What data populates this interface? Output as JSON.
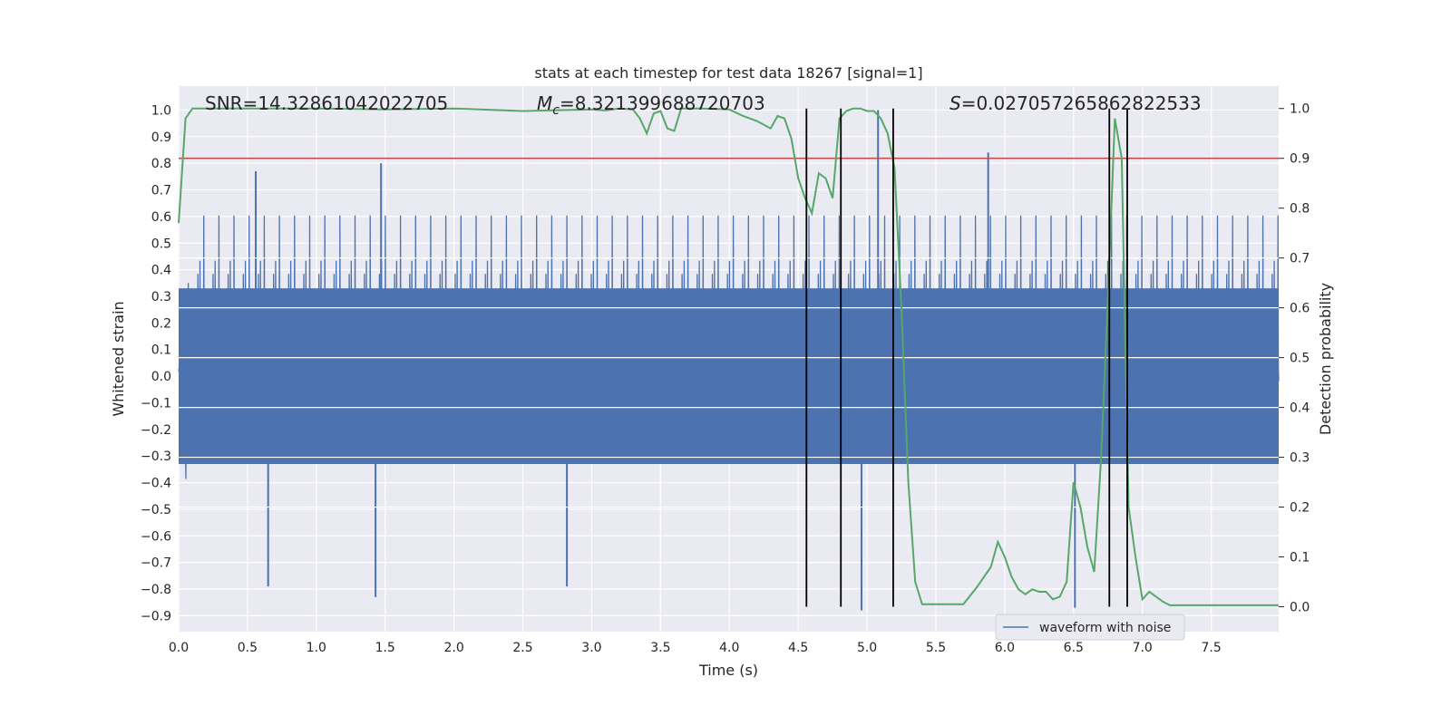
{
  "chart_data": {
    "type": "line",
    "title": "stats at each timestep for test data 18267 [signal=1]",
    "xlabel": "Time (s)",
    "ylabel": "Whitened strain",
    "y2label": "Detection probability",
    "xlim": [
      0.0,
      7.99
    ],
    "ylim": [
      -0.96,
      1.09
    ],
    "y2lim": [
      -0.05,
      1.045
    ],
    "xticks": [
      0.0,
      0.5,
      1.0,
      1.5,
      2.0,
      2.5,
      3.0,
      3.5,
      4.0,
      4.5,
      5.0,
      5.5,
      6.0,
      6.5,
      7.0,
      7.5
    ],
    "xtick_labels": [
      "0.0",
      "0.5",
      "1.0",
      "1.5",
      "2.0",
      "2.5",
      "3.0",
      "3.5",
      "4.0",
      "4.5",
      "5.0",
      "5.5",
      "6.0",
      "6.5",
      "7.0",
      "7.5"
    ],
    "yticks": [
      1.0,
      0.9,
      0.8,
      0.7,
      0.6,
      0.5,
      0.4,
      0.3,
      0.2,
      0.1,
      0.0,
      -0.1,
      -0.2,
      -0.3,
      -0.4,
      -0.5,
      -0.6,
      -0.7,
      -0.8,
      -0.9
    ],
    "ytick_labels": [
      "1.0",
      "0.9",
      "0.8",
      "0.7",
      "0.6",
      "0.5",
      "0.4",
      "0.3",
      "0.2",
      "0.1",
      "0.0",
      "−0.1",
      "−0.2",
      "−0.3",
      "−0.4",
      "−0.5",
      "−0.6",
      "−0.7",
      "−0.8",
      "−0.9"
    ],
    "y2ticks": [
      1.0,
      0.9,
      0.8,
      0.7,
      0.6,
      0.5,
      0.4,
      0.3,
      0.2,
      0.1,
      0.0
    ],
    "y2tick_labels": [
      "1.0",
      "0.9",
      "0.8",
      "0.7",
      "0.6",
      "0.5",
      "0.4",
      "0.3",
      "0.2",
      "0.1",
      "0.0"
    ],
    "grid": true,
    "annotations": {
      "snr": "SNR=14.32861042022705",
      "mc_symbol": "M",
      "mc_sub": "c",
      "mc_value": "=8.321399688720703",
      "s_symbol": "S",
      "s_value": "=0.027057265862822533"
    },
    "series": [
      {
        "name": "waveform with noise",
        "color": "#4c72b0",
        "axis": "left",
        "kind": "noise",
        "core_range": [
          -0.33,
          0.33
        ],
        "typical_peak_range": [
          -0.6,
          0.7
        ],
        "extreme_spikes": [
          {
            "x": 0.65,
            "y": -0.79
          },
          {
            "x": 1.43,
            "y": -0.83
          },
          {
            "x": 1.47,
            "y": 0.8
          },
          {
            "x": 4.96,
            "y": -0.88
          },
          {
            "x": 5.08,
            "y": 1.0
          },
          {
            "x": 5.88,
            "y": 0.84
          },
          {
            "x": 6.51,
            "y": -0.87
          },
          {
            "x": 0.56,
            "y": 0.77
          },
          {
            "x": 2.82,
            "y": -0.79
          }
        ]
      },
      {
        "name": "detection probability",
        "color": "#55a868",
        "axis": "right",
        "x": [
          0.0,
          0.05,
          0.1,
          0.5,
          1.0,
          1.5,
          2.0,
          2.5,
          3.0,
          3.1,
          3.2,
          3.3,
          3.35,
          3.4,
          3.45,
          3.5,
          3.55,
          3.6,
          3.65,
          3.7,
          3.75,
          3.8,
          4.0,
          4.1,
          4.2,
          4.3,
          4.35,
          4.4,
          4.45,
          4.5,
          4.55,
          4.6,
          4.65,
          4.7,
          4.75,
          4.8,
          4.85,
          4.9,
          4.95,
          5.0,
          5.05,
          5.1,
          5.15,
          5.2,
          5.25,
          5.3,
          5.35,
          5.4,
          5.45,
          5.5,
          5.6,
          5.7,
          5.8,
          5.9,
          5.95,
          6.0,
          6.05,
          6.1,
          6.15,
          6.2,
          6.25,
          6.3,
          6.35,
          6.4,
          6.45,
          6.5,
          6.55,
          6.6,
          6.65,
          6.7,
          6.75,
          6.8,
          6.85,
          6.9,
          6.95,
          7.0,
          7.05,
          7.1,
          7.15,
          7.2,
          7.5,
          7.8,
          7.99
        ],
        "y": [
          0.77,
          0.98,
          1.0,
          1.0,
          1.0,
          0.998,
          1.0,
          0.995,
          0.998,
          0.996,
          1.0,
          0.998,
          0.98,
          0.95,
          0.99,
          0.995,
          0.96,
          0.955,
          1.0,
          1.0,
          1.0,
          1.0,
          0.998,
          0.985,
          0.975,
          0.96,
          0.985,
          0.98,
          0.94,
          0.86,
          0.82,
          0.79,
          0.87,
          0.86,
          0.82,
          0.98,
          0.995,
          1.0,
          1.0,
          0.995,
          0.995,
          0.98,
          0.95,
          0.88,
          0.6,
          0.25,
          0.05,
          0.005,
          0.005,
          0.005,
          0.005,
          0.005,
          0.04,
          0.08,
          0.13,
          0.1,
          0.06,
          0.035,
          0.025,
          0.035,
          0.03,
          0.03,
          0.015,
          0.02,
          0.05,
          0.25,
          0.2,
          0.12,
          0.07,
          0.3,
          0.62,
          0.98,
          0.9,
          0.2,
          0.1,
          0.015,
          0.03,
          0.02,
          0.01,
          0.003,
          0.003,
          0.003,
          0.003
        ]
      },
      {
        "name": "threshold",
        "color": "#c44e52",
        "axis": "right",
        "kind": "hline",
        "value": 0.9
      },
      {
        "name": "detection markers",
        "color": "#000000",
        "axis": "right",
        "kind": "vlines",
        "x": [
          4.56,
          4.81,
          5.19,
          6.76,
          6.89
        ],
        "range": [
          0.0,
          1.0
        ]
      }
    ],
    "legend": {
      "placement": "lower-center-right",
      "entries": [
        "waveform with noise"
      ]
    }
  }
}
